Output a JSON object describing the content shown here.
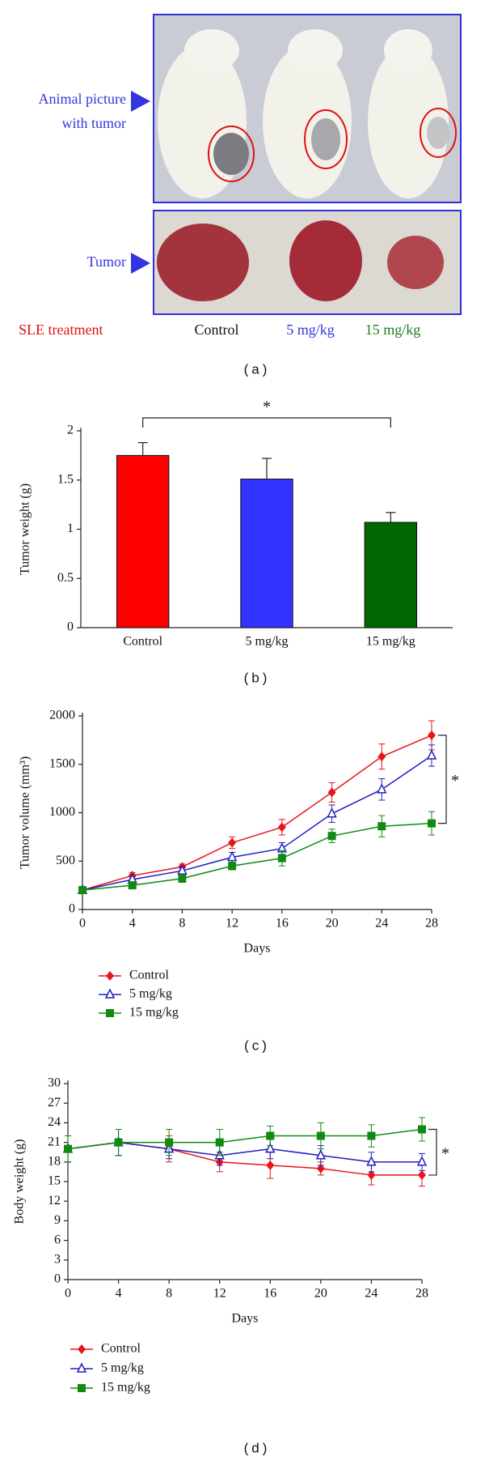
{
  "photo_panel": {
    "animal_label_lines": [
      "Animal picture",
      "with tumor"
    ],
    "tumor_label": "Tumor",
    "treatment_label": "SLE treatment",
    "groups": [
      "Control",
      "5 mg/kg",
      "15 mg/kg"
    ],
    "group_colors": [
      "#111111",
      "#3535e0",
      "#1f7a1f"
    ],
    "caption": "(a)"
  },
  "chart_data": [
    {
      "type": "bar",
      "caption": "(b)",
      "y_label": "Tumor weight (g)",
      "categories": [
        "Control",
        "5 mg/kg",
        "15 mg/kg"
      ],
      "values": [
        1.75,
        1.51,
        1.07
      ],
      "errors": [
        0.13,
        0.21,
        0.1
      ],
      "colors": [
        "#ff0000",
        "#3333ff",
        "#006600"
      ],
      "ylim": [
        0,
        2
      ],
      "yticks": [
        0,
        0.5,
        1,
        1.5,
        2
      ],
      "annotation": "*"
    },
    {
      "type": "line",
      "caption": "(c)",
      "y_label": "Tumor volume (mm³)",
      "x_label": "Days",
      "x": [
        0,
        4,
        8,
        12,
        16,
        20,
        24,
        28
      ],
      "xlim": [
        0,
        28
      ],
      "xticks": [
        0,
        4,
        8,
        12,
        16,
        20,
        24,
        28
      ],
      "ylim": [
        0,
        2000
      ],
      "yticks": [
        0,
        500,
        1000,
        1500,
        2000
      ],
      "annotation": "*",
      "series": [
        {
          "name": "Control",
          "color": "#e8141b",
          "marker": "diamond",
          "values": [
            200,
            350,
            440,
            690,
            850,
            1210,
            1580,
            1800
          ],
          "errors": [
            20,
            30,
            30,
            60,
            80,
            100,
            130,
            150
          ]
        },
        {
          "name": "5 mg/kg",
          "color": "#2020c0",
          "marker": "triangle",
          "values": [
            200,
            310,
            400,
            540,
            630,
            990,
            1240,
            1590
          ],
          "errors": [
            20,
            30,
            40,
            50,
            60,
            90,
            110,
            110
          ]
        },
        {
          "name": "15 mg/kg",
          "color": "#118a11",
          "marker": "square",
          "values": [
            200,
            250,
            320,
            450,
            530,
            760,
            860,
            890
          ],
          "errors": [
            20,
            30,
            40,
            40,
            80,
            70,
            110,
            120
          ]
        }
      ]
    },
    {
      "type": "line",
      "caption": "(d)",
      "y_label": "Body weight (g)",
      "x_label": "Days",
      "x": [
        0,
        4,
        8,
        12,
        16,
        20,
        24,
        28
      ],
      "xlim": [
        0,
        28
      ],
      "xticks": [
        0,
        4,
        8,
        12,
        16,
        20,
        24,
        28
      ],
      "ylim": [
        0,
        30
      ],
      "yticks": [
        0,
        3,
        6,
        9,
        12,
        15,
        18,
        21,
        24,
        27,
        30
      ],
      "annotation": "*",
      "series": [
        {
          "name": "Control",
          "color": "#e8141b",
          "marker": "diamond",
          "values": [
            20,
            21,
            20,
            18,
            17.5,
            17,
            16,
            16
          ],
          "errors": [
            2,
            2,
            2,
            1.5,
            2,
            1,
            1.5,
            1.7
          ]
        },
        {
          "name": "5 mg/kg",
          "color": "#2020c0",
          "marker": "triangle",
          "values": [
            20,
            21,
            20,
            19,
            20,
            19,
            18,
            18
          ],
          "errors": [
            2,
            2,
            1.5,
            1.5,
            1.5,
            1.5,
            1.5,
            1.3
          ]
        },
        {
          "name": "15 mg/kg",
          "color": "#118a11",
          "marker": "square",
          "values": [
            20,
            21,
            21,
            21,
            22,
            22,
            22,
            23
          ],
          "errors": [
            2,
            2,
            2,
            2,
            1.5,
            2,
            1.7,
            1.8
          ]
        }
      ]
    }
  ]
}
